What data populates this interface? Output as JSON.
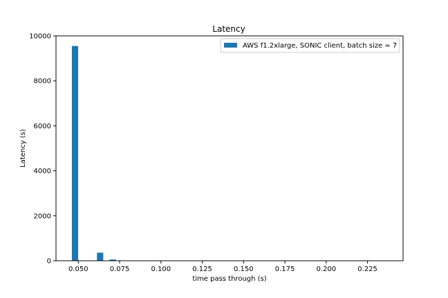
{
  "chart_data": {
    "type": "bar",
    "title": "Latency",
    "xlabel": "time pass through (s)",
    "ylabel": "Latency (s)",
    "xlim": [
      0.0365,
      0.2465
    ],
    "ylim": [
      0,
      10000
    ],
    "grid": false,
    "legend_position": "top-right",
    "x_ticks": [
      0.05,
      0.075,
      0.1,
      0.125,
      0.15,
      0.175,
      0.2,
      0.225
    ],
    "x_tick_labels": [
      "0.050",
      "0.075",
      "0.100",
      "0.125",
      "0.150",
      "0.175",
      "0.200",
      "0.225"
    ],
    "y_ticks": [
      0,
      2000,
      4000,
      6000,
      8000,
      10000
    ],
    "y_tick_labels": [
      "0",
      "2000",
      "4000",
      "6000",
      "8000",
      "10000"
    ],
    "bin_width": 0.0038,
    "series": [
      {
        "name": "AWS f1.2xlarge, SONIC client, batch size = 7",
        "color": "#1f77b4",
        "bins": [
          {
            "x": 0.048,
            "value": 9550
          },
          {
            "x": 0.0518,
            "value": 0
          },
          {
            "x": 0.0556,
            "value": 0
          },
          {
            "x": 0.0594,
            "value": 0
          },
          {
            "x": 0.0632,
            "value": 360
          },
          {
            "x": 0.067,
            "value": 0
          },
          {
            "x": 0.0708,
            "value": 55
          },
          {
            "x": 0.0746,
            "value": 12
          },
          {
            "x": 0.0784,
            "value": 3
          }
        ]
      }
    ]
  }
}
